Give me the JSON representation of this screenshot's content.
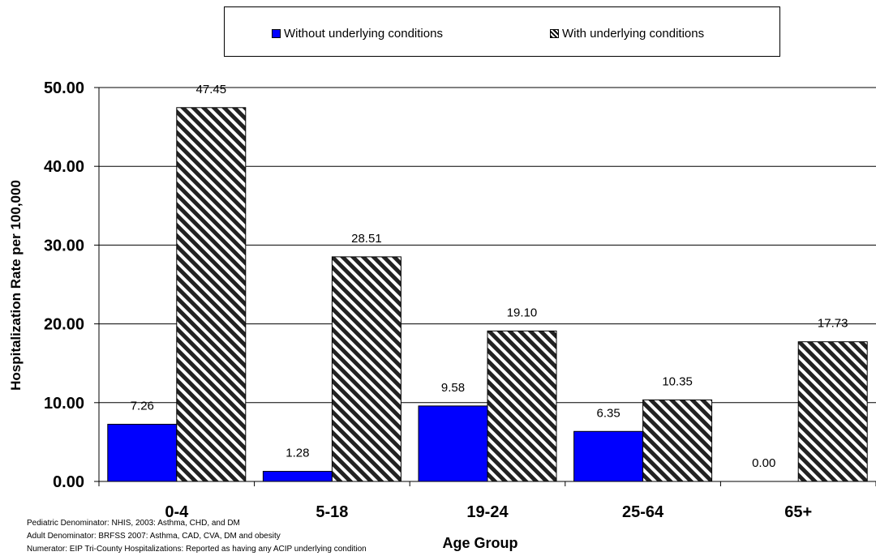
{
  "chart_data": {
    "type": "bar",
    "categories": [
      "0-4",
      "5-18",
      "19-24",
      "25-64",
      "65+"
    ],
    "series": [
      {
        "name": "Without underlying conditions",
        "values": [
          7.26,
          1.28,
          9.58,
          6.35,
          0.0
        ],
        "color": "#0000ff",
        "fill": "solid"
      },
      {
        "name": "With underlying conditions",
        "values": [
          47.45,
          28.51,
          19.1,
          10.35,
          17.73
        ],
        "color": "#000000",
        "fill": "diagonal-hatch"
      }
    ],
    "data_labels": [
      [
        "7.26",
        "1.28",
        "9.58",
        "6.35",
        "0.00"
      ],
      [
        "47.45",
        "28.51",
        "19.10",
        "10.35",
        "17.73"
      ]
    ],
    "xlabel": "Age Group",
    "ylabel": "Hospitalization Rate per 100,000",
    "ylim": [
      0,
      50
    ],
    "yticks": [
      0,
      10,
      20,
      30,
      40,
      50
    ],
    "ytick_labels": [
      "0.00",
      "10.00",
      "20.00",
      "30.00",
      "40.00",
      "50.00"
    ],
    "grid": true,
    "legend_placement": "top"
  },
  "legend": {
    "items": [
      "Without underlying conditions",
      "With underlying conditions"
    ]
  },
  "footnotes": [
    "Pediatric Denominator: NHIS, 2003: Asthma, CHD, and DM",
    "Adult Denominator: BRFSS 2007: Asthma, CAD, CVA, DM and obesity",
    "Numerator: EIP Tri-County Hospitalizations: Reported as having any ACIP underlying condition"
  ]
}
